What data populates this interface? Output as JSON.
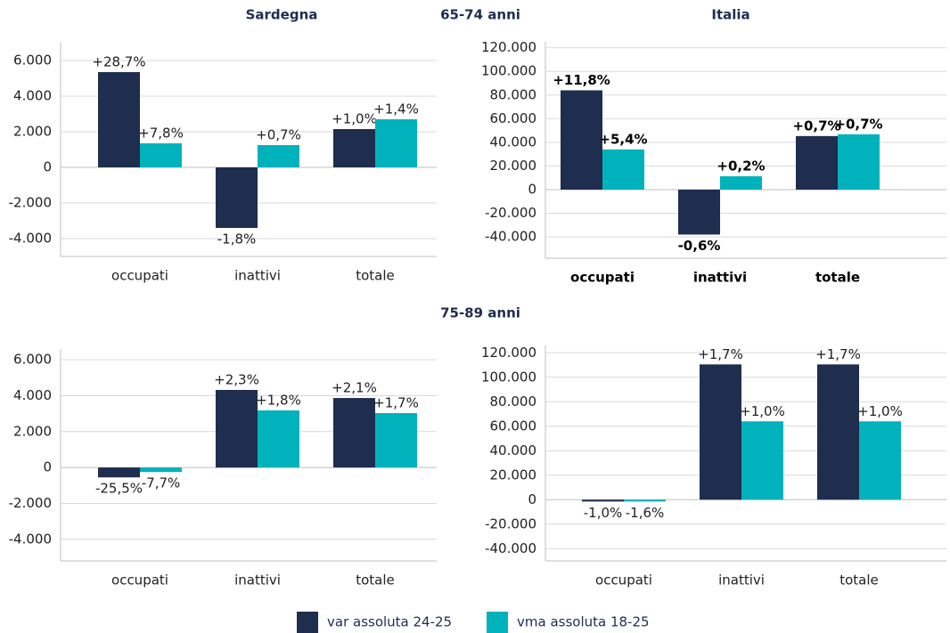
{
  "section_titles": [
    "65-74 anni",
    "75-89 anni"
  ],
  "chart_data": [
    {
      "type": "bar",
      "title": "Sardegna",
      "categories": [
        "occupati",
        "inattivi",
        "totale"
      ],
      "ylim": [
        -5000,
        7000
      ],
      "yticks": [
        {
          "value": -4000,
          "label": "-4.000"
        },
        {
          "value": -2000,
          "label": "-2.000"
        },
        0,
        {
          "value": 2000,
          "label": "2.000"
        },
        {
          "value": 4000,
          "label": "4.000"
        },
        {
          "value": 6000,
          "label": "6.000"
        }
      ],
      "series": [
        {
          "name": "var assoluta 24-25",
          "color": "#1f2d4e",
          "values": [
            5350,
            -3400,
            2150
          ],
          "labels": [
            "+28,7%",
            "-1,8%",
            "+1,0%"
          ]
        },
        {
          "name": "vma assoluta 18-25",
          "color": "#00b2bb",
          "values": [
            1350,
            1250,
            2700
          ],
          "labels": [
            "+7,8%",
            "+0,7%",
            "+1,4%"
          ]
        }
      ]
    },
    {
      "type": "bar",
      "title": "Italia",
      "categories": [
        "occupati",
        "inattivi",
        "totale"
      ],
      "ylim": [
        -58000,
        125000
      ],
      "yticks": [
        {
          "value": -40000,
          "label": "-40.000"
        },
        {
          "value": -20000,
          "label": "-20.000"
        },
        0,
        {
          "value": 20000,
          "label": "20.000"
        },
        {
          "value": 40000,
          "label": "40.000"
        },
        {
          "value": 60000,
          "label": "60.000"
        },
        {
          "value": 80000,
          "label": "80.000"
        },
        {
          "value": 100000,
          "label": "100.000"
        },
        {
          "value": 120000,
          "label": "120.000"
        }
      ],
      "series": [
        {
          "name": "var assoluta 24-25",
          "color": "#1f2d4e",
          "values": [
            84000,
            -38000,
            45300
          ],
          "labels": [
            "+11,8%",
            "-0,6%",
            "+0,7%"
          ]
        },
        {
          "name": "vma assoluta 18-25",
          "color": "#00b2bb",
          "values": [
            34000,
            11300,
            46800
          ],
          "labels": [
            "+5,4%",
            "+0,2%",
            "+0,7%"
          ]
        }
      ]
    },
    {
      "type": "bar",
      "categories": [
        "occupati",
        "inattivi",
        "totale"
      ],
      "ylim": [
        -5200,
        6600
      ],
      "yticks": [
        {
          "value": -4000,
          "label": "-4.000"
        },
        {
          "value": -2000,
          "label": "-2.000"
        },
        0,
        {
          "value": 2000,
          "label": "2.000"
        },
        {
          "value": 4000,
          "label": "4.000"
        },
        {
          "value": 6000,
          "label": "6.000"
        }
      ],
      "series": [
        {
          "name": "var assoluta 24-25",
          "color": "#1f2d4e",
          "values": [
            -550,
            4320,
            3870
          ],
          "labels": [
            "-25,5%",
            "+2,3%",
            "+2,1%"
          ]
        },
        {
          "name": "vma assoluta 18-25",
          "color": "#00b2bb",
          "values": [
            -250,
            3180,
            3030
          ],
          "labels": [
            "-7,7%",
            "+1,8%",
            "+1,7%"
          ]
        }
      ]
    },
    {
      "type": "bar",
      "categories": [
        "occupati",
        "inattivi",
        "totale"
      ],
      "ylim": [
        -50000,
        126000
      ],
      "yticks": [
        {
          "value": -40000,
          "label": "-40.000"
        },
        {
          "value": -20000,
          "label": "-20.000"
        },
        0,
        {
          "value": 20000,
          "label": "20.000"
        },
        {
          "value": 40000,
          "label": "40.000"
        },
        {
          "value": 60000,
          "label": "60.000"
        },
        {
          "value": 80000,
          "label": "80.000"
        },
        {
          "value": 100000,
          "label": "100.000"
        },
        {
          "value": 120000,
          "label": "120.000"
        }
      ],
      "series": [
        {
          "name": "var assoluta 24-25",
          "color": "#1f2d4e",
          "values": [
            -1500,
            110500,
            110500
          ],
          "labels": [
            "-1,0%",
            "+1,7%",
            "+1,7%"
          ]
        },
        {
          "name": "vma assoluta 18-25",
          "color": "#00b2bb",
          "values": [
            -1500,
            64000,
            64000
          ],
          "labels": [
            "-1,6%",
            "+1,0%",
            "+1,0%"
          ]
        }
      ]
    }
  ]
}
